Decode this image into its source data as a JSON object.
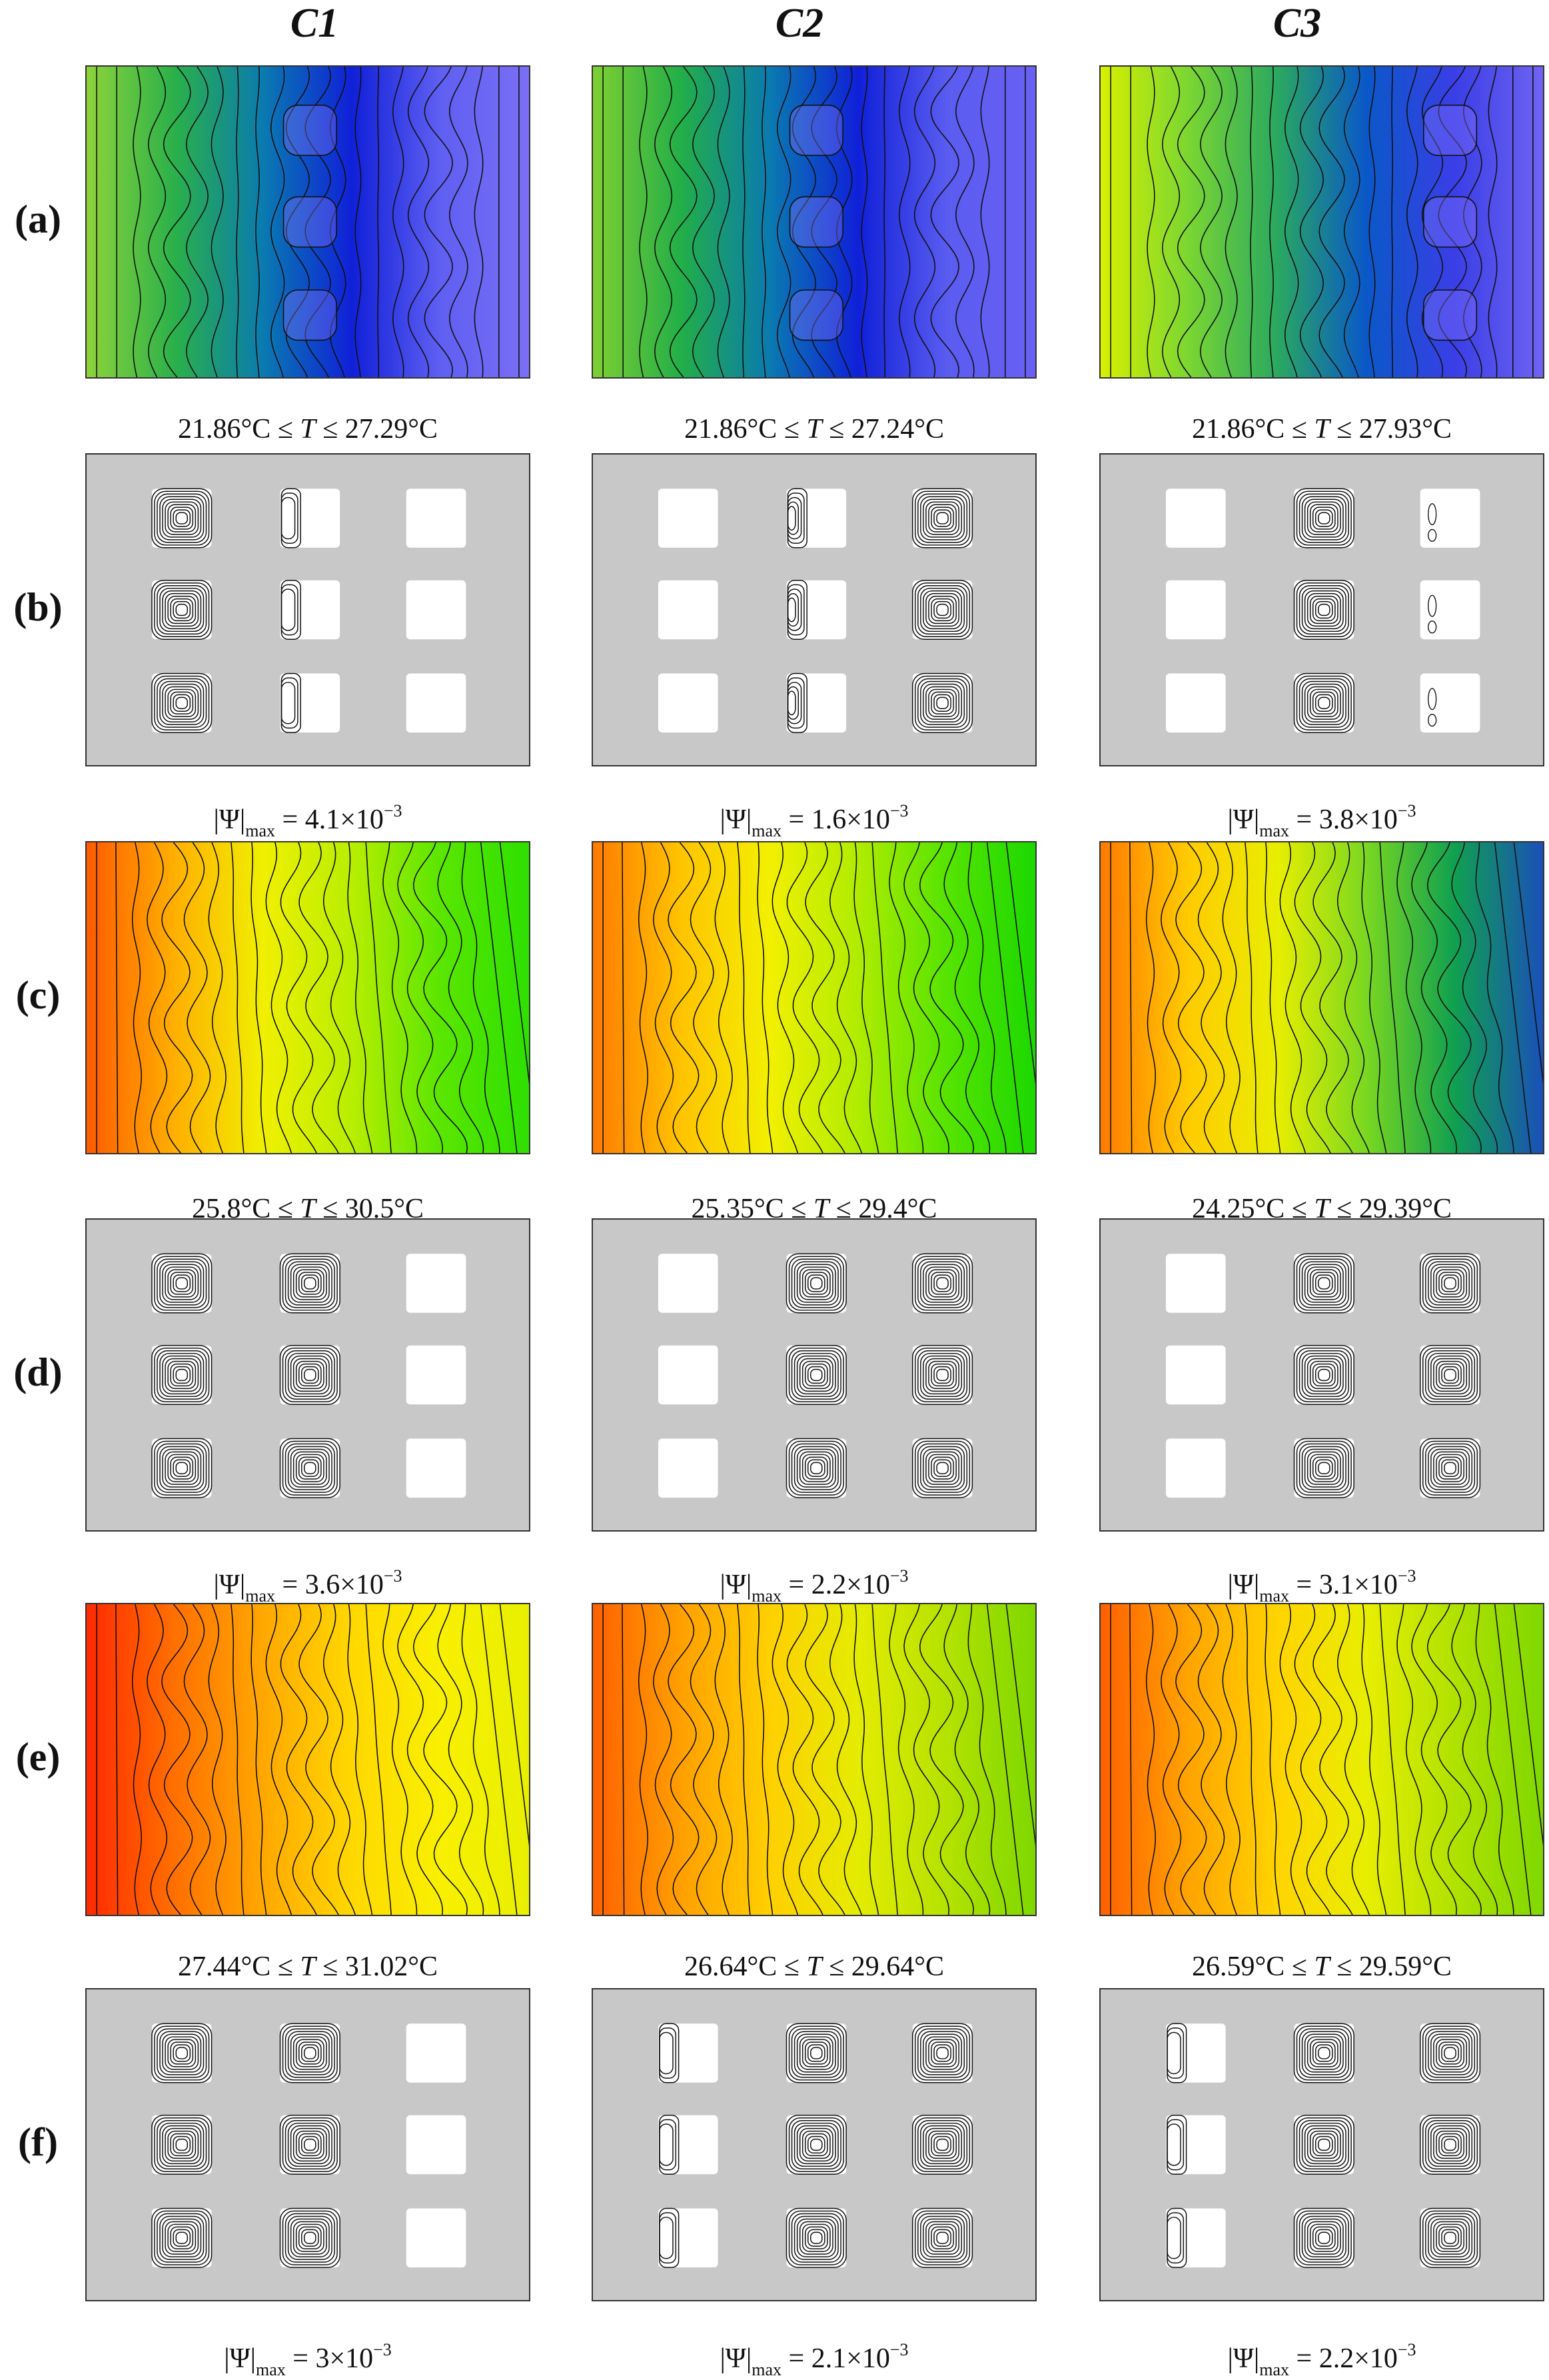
{
  "columns": [
    "C1",
    "C2",
    "C3"
  ],
  "rows": [
    "(a)",
    "(b)",
    "(c)",
    "(d)",
    "(e)",
    "(f)"
  ],
  "panel_types": [
    "temperature",
    "streamfunction",
    "temperature",
    "streamfunction",
    "temperature",
    "streamfunction"
  ],
  "captions": [
    [
      {
        "kind": "temp",
        "tmin": "21.86°C",
        "tmax": "27.29°C"
      },
      {
        "kind": "temp",
        "tmin": "21.86°C",
        "tmax": "27.24°C"
      },
      {
        "kind": "temp",
        "tmin": "21.86°C",
        "tmax": "27.93°C"
      }
    ],
    [
      {
        "kind": "psi",
        "mantissa": "4.1×10",
        "exp": "−3"
      },
      {
        "kind": "psi",
        "mantissa": "1.6×10",
        "exp": "−3"
      },
      {
        "kind": "psi",
        "mantissa": "3.8×10",
        "exp": "−3"
      }
    ],
    [
      {
        "kind": "temp",
        "tmin": "25.8°C",
        "tmax": "30.5°C"
      },
      {
        "kind": "temp",
        "tmin": "25.35°C",
        "tmax": "29.4°C"
      },
      {
        "kind": "temp",
        "tmin": "24.25°C",
        "tmax": "29.39°C"
      }
    ],
    [
      {
        "kind": "psi",
        "mantissa": "3.6×10",
        "exp": "−3"
      },
      {
        "kind": "psi",
        "mantissa": "2.2×10",
        "exp": "−3"
      },
      {
        "kind": "psi",
        "mantissa": "3.1×10",
        "exp": "−3"
      }
    ],
    [
      {
        "kind": "temp",
        "tmin": "27.44°C",
        "tmax": "31.02°C"
      },
      {
        "kind": "temp",
        "tmin": "26.64°C",
        "tmax": "29.64°C"
      },
      {
        "kind": "temp",
        "tmin": "26.59°C",
        "tmax": "29.59°C"
      }
    ],
    [
      {
        "kind": "psi",
        "mantissa": "3×10",
        "exp": "−3"
      },
      {
        "kind": "psi",
        "mantissa": "2.1×10",
        "exp": "−3"
      },
      {
        "kind": "psi",
        "mantissa": "2.2×10",
        "exp": "−3"
      }
    ]
  ],
  "text_symbols": {
    "leq": "≤",
    "T": "T",
    "psi": "Ψ",
    "max": "max",
    "equals": "="
  },
  "colors": {
    "stream_background": "#c8c8c8",
    "block": "#ffffff",
    "contour": "#111111",
    "temp_a_left": "#9acd32",
    "temp_a_right": "#5050f0",
    "temp_c_left": "#ff5a00",
    "temp_c_right": "#22dd00",
    "temp_e_left": "#ff2a00",
    "temp_e_right": "#88dd00"
  },
  "temperature_ramps": [
    [
      [
        "#8ed43a",
        "#2ab04a",
        "#0a7ab0",
        "#1020d8",
        "#5f5ff2",
        "#7a6ff5"
      ],
      [
        "#7fd032",
        "#22ae48",
        "#0a7ab0",
        "#1020d8",
        "#5a5cf0",
        "#6a60f4"
      ],
      [
        "#d8f000",
        "#7ad632",
        "#2aa860",
        "#0a58c8",
        "#3a3ee6",
        "#6f63f2"
      ]
    ],
    [
      [
        "#ff5a00",
        "#ffb000",
        "#f0f000",
        "#b8ee00",
        "#5ae600",
        "#2ee000"
      ],
      [
        "#ff7a00",
        "#ffc400",
        "#f2f000",
        "#b0ec00",
        "#56e400",
        "#1cd800"
      ],
      [
        "#ff7a00",
        "#ffcc00",
        "#e8ee00",
        "#7ad820",
        "#10a050",
        "#1a50b8"
      ]
    ],
    [
      [
        "#ff2a00",
        "#ff7000",
        "#ffa800",
        "#ffd800",
        "#f8f000",
        "#e8f000"
      ],
      [
        "#ff6000",
        "#ffa000",
        "#ffd000",
        "#e4ec00",
        "#b4e200",
        "#7ed800"
      ],
      [
        "#ff6000",
        "#ffa400",
        "#ffd400",
        "#e8ee00",
        "#b0e200",
        "#80d800"
      ]
    ]
  ],
  "stream_cells": [
    [
      [
        "strong",
        "weak",
        "none"
      ],
      [
        "none",
        "weak-strong",
        "strong"
      ],
      [
        "none",
        "strong",
        "tiny"
      ]
    ],
    [
      [
        "strong",
        "strong",
        "none"
      ],
      [
        "none",
        "strong",
        "strong"
      ],
      [
        "none",
        "strong",
        "strong"
      ]
    ],
    [
      [
        "strong",
        "strong",
        "none"
      ],
      [
        "weak",
        "strong",
        "strong"
      ],
      [
        "weak",
        "strong",
        "strong"
      ]
    ]
  ]
}
